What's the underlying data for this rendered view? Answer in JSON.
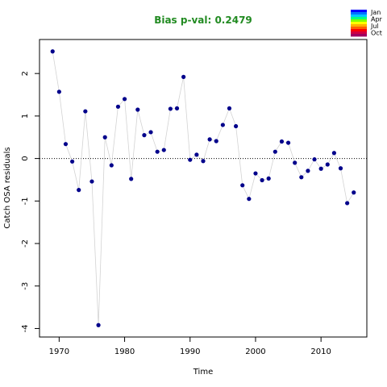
{
  "chart_data": {
    "type": "scatter",
    "title": "Bias p-val: 0.2479",
    "title_color": "#228B22",
    "xlabel": "Time",
    "ylabel": "Catch OSA residuals",
    "xlim": [
      1967,
      2017
    ],
    "ylim": [
      -4.2,
      2.8
    ],
    "xticks": [
      1970,
      1980,
      1990,
      2000,
      2010
    ],
    "yticks": [
      -4,
      -3,
      -2,
      -1,
      0,
      1,
      2
    ],
    "reference_line": 0,
    "point_color": "#00008B",
    "line_color": "#d3d3d3",
    "grid": false,
    "legend_position": "top-right",
    "legend": {
      "labels": [
        "Jan",
        "Apr",
        "Jul",
        "Oct"
      ],
      "colors": [
        "#0000ff",
        "#0073ff",
        "#00c8ff",
        "#00ff80",
        "#80ff00",
        "#ffff00",
        "#ffb000",
        "#ff6000",
        "#ff0000",
        "#d00040",
        "#a00060"
      ]
    },
    "x": [
      1969,
      1970,
      1971,
      1972,
      1973,
      1974,
      1975,
      1976,
      1977,
      1978,
      1979,
      1980,
      1981,
      1982,
      1983,
      1984,
      1985,
      1986,
      1987,
      1988,
      1989,
      1990,
      1991,
      1992,
      1993,
      1994,
      1995,
      1996,
      1997,
      1998,
      1999,
      2000,
      2001,
      2002,
      2003,
      2004,
      2005,
      2006,
      2007,
      2008,
      2009,
      2010,
      2011,
      2012,
      2013,
      2014,
      2015
    ],
    "y": [
      2.52,
      1.57,
      0.34,
      -0.07,
      -0.74,
      1.11,
      -0.54,
      -3.92,
      0.5,
      -0.16,
      1.22,
      1.4,
      -0.48,
      1.15,
      0.55,
      0.62,
      0.16,
      0.2,
      1.17,
      1.18,
      1.92,
      -0.03,
      0.09,
      -0.06,
      0.45,
      0.41,
      0.79,
      1.18,
      0.76,
      -0.63,
      -0.95,
      -0.35,
      -0.51,
      -0.47,
      0.16,
      0.4,
      0.37,
      -0.1,
      -0.44,
      -0.29,
      -0.02,
      -0.24,
      -0.14,
      0.13,
      -0.23,
      -1.05,
      -0.8
    ]
  }
}
